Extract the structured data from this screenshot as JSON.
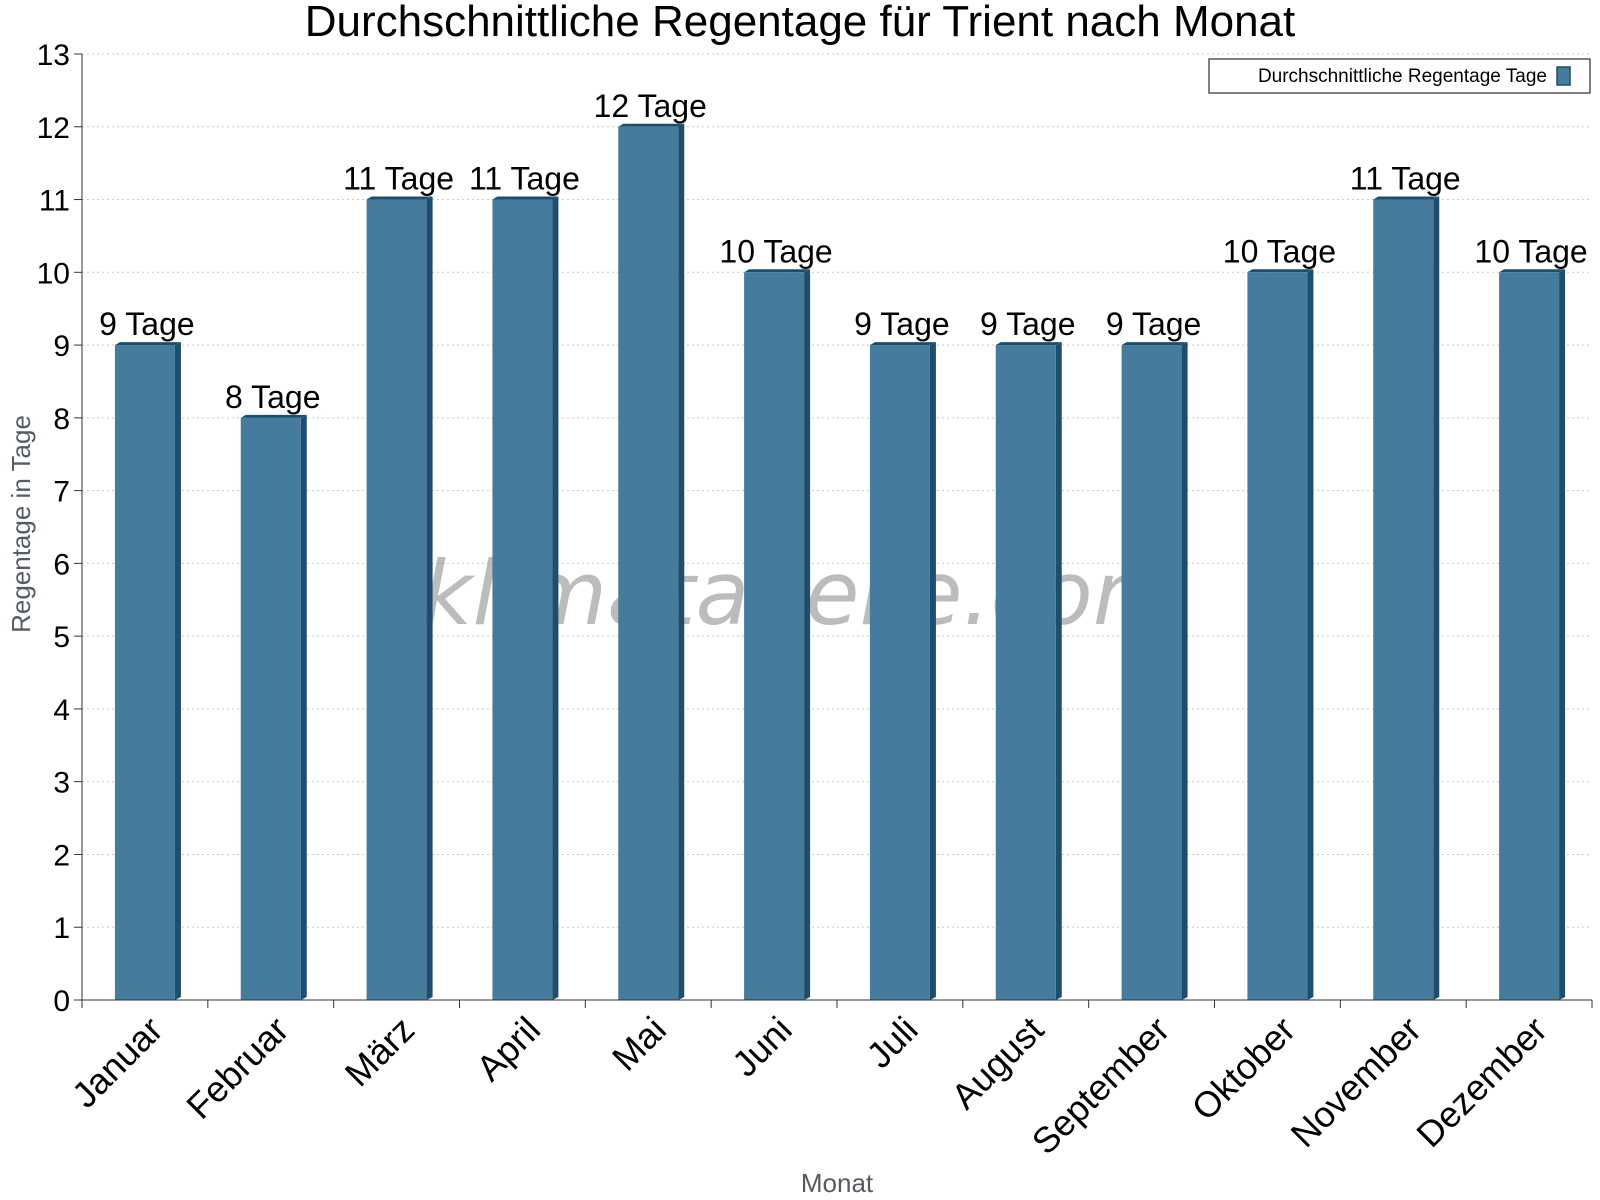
{
  "chart_data": {
    "type": "bar",
    "title": "Durchschnittliche Regentage für Trient nach Monat",
    "xlabel": "Monat",
    "ylabel": "Regentage in Tage",
    "ylim": [
      0,
      13
    ],
    "yticks": [
      0,
      1,
      2,
      3,
      4,
      5,
      6,
      7,
      8,
      9,
      10,
      11,
      12,
      13
    ],
    "grid": true,
    "legend_position": "top-right",
    "categories": [
      "Januar",
      "Februar",
      "März",
      "April",
      "Mai",
      "Juni",
      "Juli",
      "August",
      "September",
      "Oktober",
      "November",
      "Dezember"
    ],
    "series": [
      {
        "name": "Durchschnittliche Regentage Tage",
        "values": [
          9,
          8,
          11,
          11,
          12,
          10,
          9,
          9,
          9,
          10,
          11,
          10
        ],
        "labels": [
          "9 Tage",
          "8 Tage",
          "11 Tage",
          "11 Tage",
          "12 Tage",
          "10 Tage",
          "9 Tage",
          "9 Tage",
          "9 Tage",
          "10 Tage",
          "11 Tage",
          "10 Tage"
        ]
      }
    ],
    "colors": {
      "bar": "#457b9d",
      "bar_dark": "#1d4e6d",
      "grid": "#c8c8c8",
      "axis": "#333333"
    }
  },
  "watermark": "klimatabelle.com"
}
